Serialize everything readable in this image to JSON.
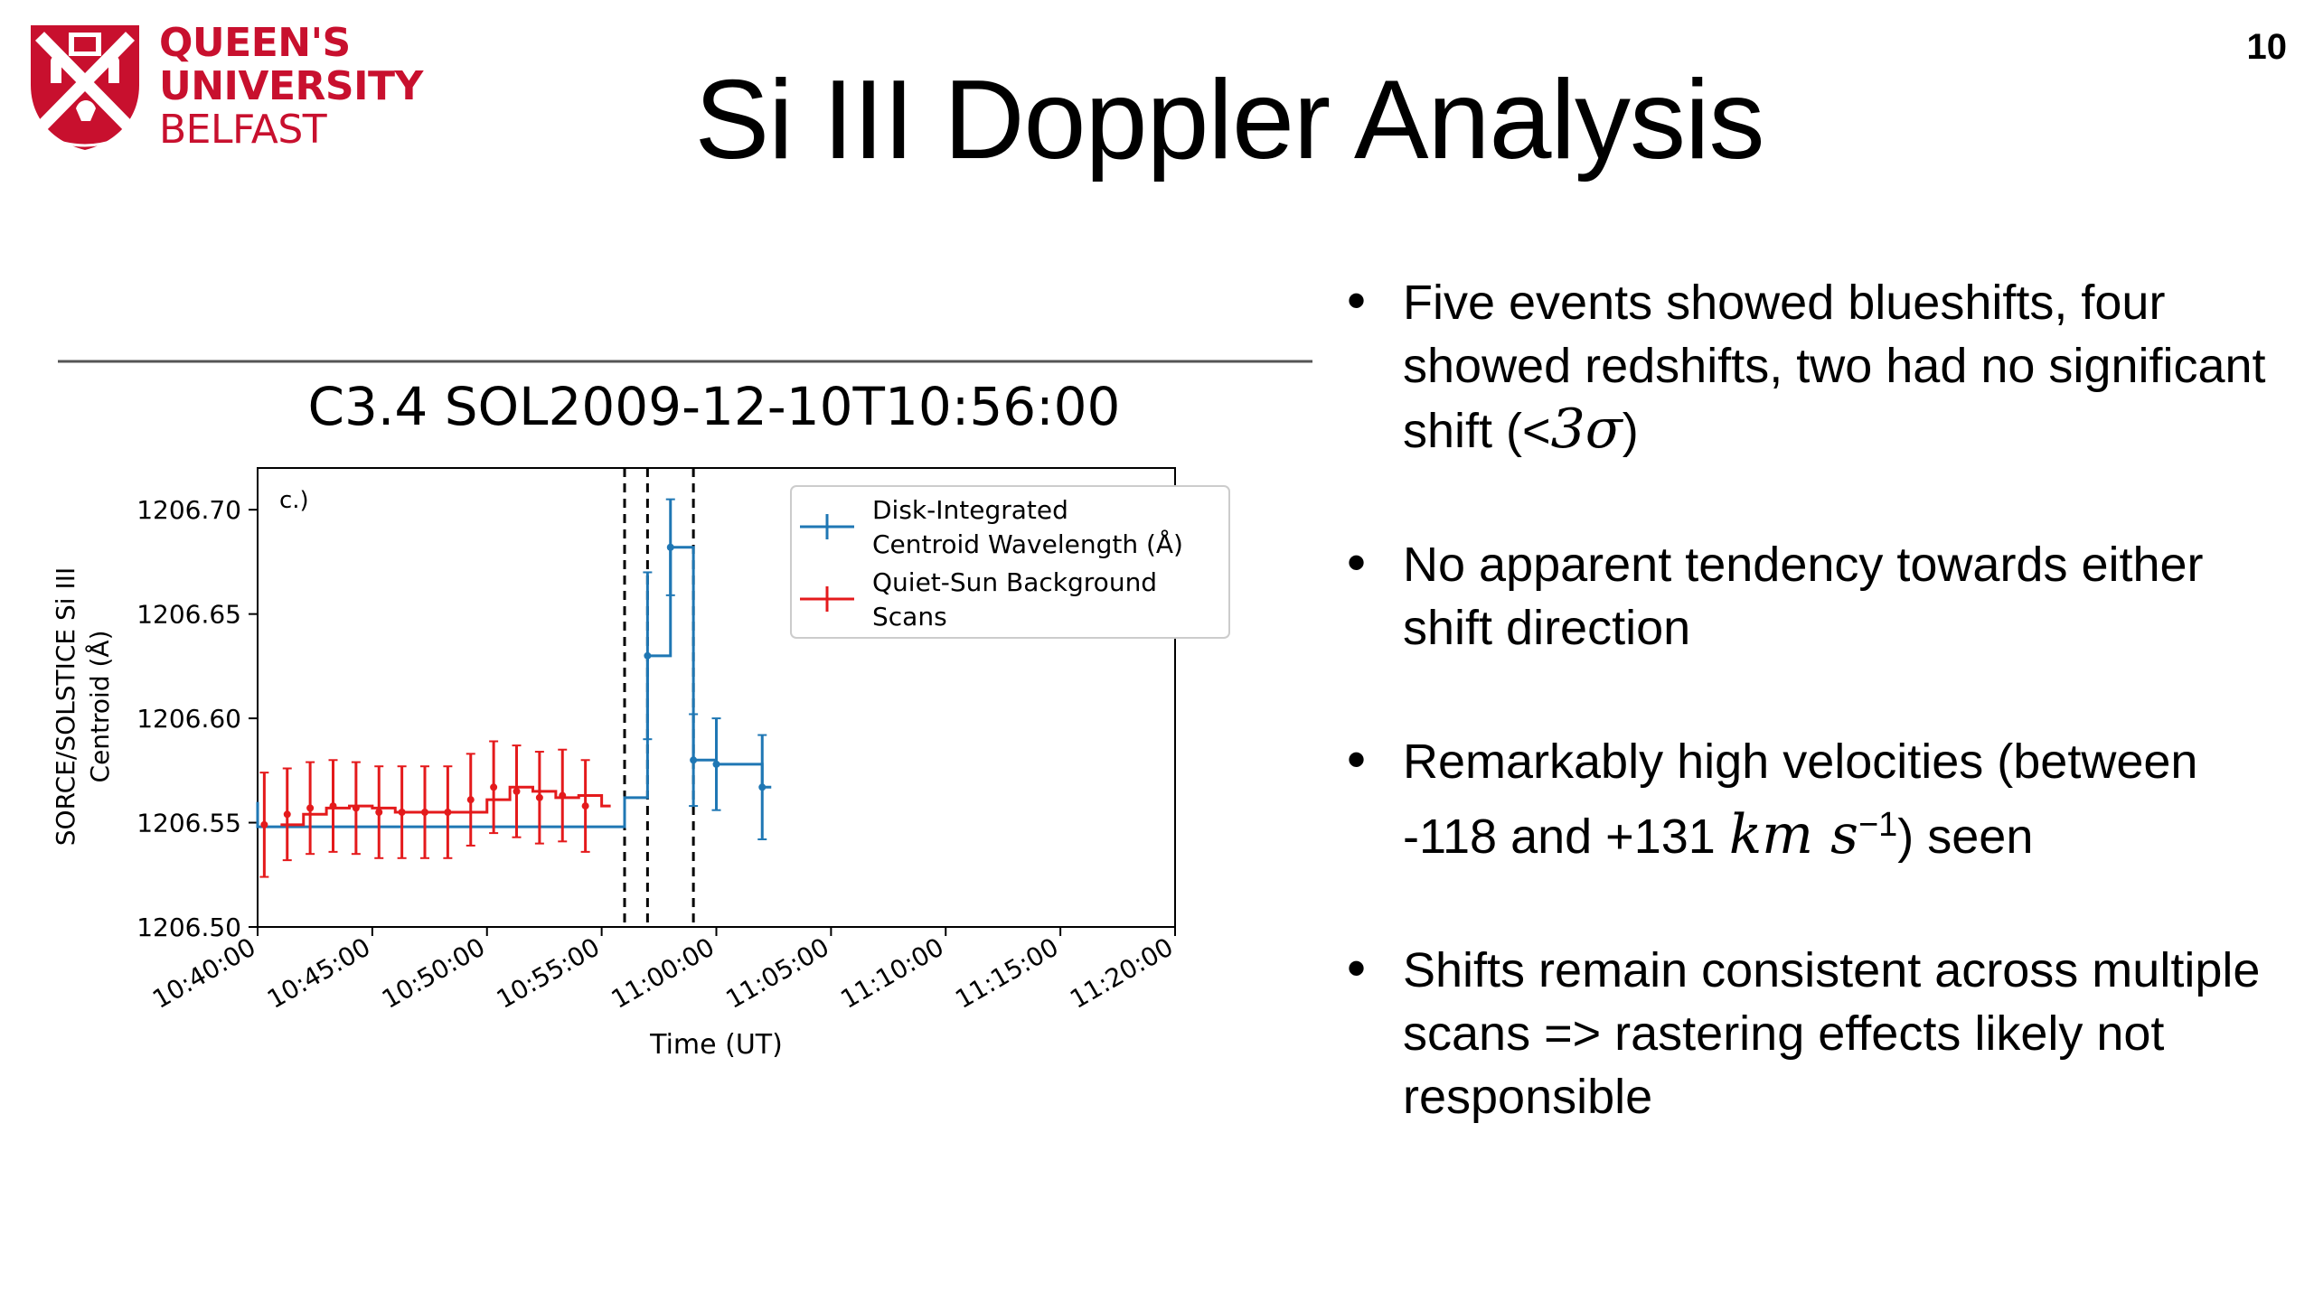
{
  "header": {
    "logo": {
      "lines": [
        "QUEEN'S",
        "UNIVERSITY",
        "BELFAST"
      ],
      "brand_color": "#c8102e"
    },
    "title": "Si III Doppler Analysis",
    "slide_number": "10"
  },
  "chart_data": {
    "type": "line",
    "title": "C3.4 SOL2009-12-10T10:56:00",
    "panel_label": "c.)",
    "xlabel": "Time (UT)",
    "ylabel": "SORCE/SOLSTICE Si III\nCentroid (Å)",
    "xlim": [
      "10:40:00",
      "11:20:00"
    ],
    "ylim": [
      1206.5,
      1206.72
    ],
    "x_ticks": [
      "10:40:00",
      "10:45:00",
      "10:50:00",
      "10:55:00",
      "11:00:00",
      "11:05:00",
      "11:10:00",
      "11:15:00",
      "11:20:00"
    ],
    "y_ticks": [
      "1206.50",
      "1206.55",
      "1206.60",
      "1206.65",
      "1206.70"
    ],
    "legend_position": "top-right",
    "vertical_lines_dashed": [
      "10:56:00",
      "10:57:00",
      "10:59:00"
    ],
    "series": [
      {
        "name": "Disk-Integrated\nCentroid Wavelength (Å)",
        "color": "#1f77b4",
        "style": "step",
        "points": [
          {
            "x": "10:40:00",
            "y": 1206.56
          },
          {
            "x": "10:40:00",
            "y": 1206.548
          },
          {
            "x": "10:41:00",
            "y": 1206.548
          },
          {
            "x": "10:56:00",
            "y": 1206.562
          },
          {
            "x": "10:57:00",
            "y": 1206.63,
            "err": 0.04
          },
          {
            "x": "10:58:00",
            "y": 1206.682,
            "err": 0.023
          },
          {
            "x": "10:59:00",
            "y": 1206.58,
            "err": 0.022
          },
          {
            "x": "11:00:00",
            "y": 1206.578,
            "err": 0.022
          },
          {
            "x": "11:02:00",
            "y": 1206.567,
            "err": 0.025
          }
        ]
      },
      {
        "name": "Quiet-Sun Background\nScans",
        "color": "#e41a1c",
        "style": "step",
        "points": [
          {
            "x": "10:41:00",
            "y": 1206.549,
            "err": 0.025
          },
          {
            "x": "10:42:00",
            "y": 1206.554,
            "err": 0.022
          },
          {
            "x": "10:43:00",
            "y": 1206.557,
            "err": 0.022
          },
          {
            "x": "10:44:00",
            "y": 1206.558,
            "err": 0.022
          },
          {
            "x": "10:45:00",
            "y": 1206.557,
            "err": 0.022
          },
          {
            "x": "10:46:00",
            "y": 1206.555,
            "err": 0.022
          },
          {
            "x": "10:47:00",
            "y": 1206.555,
            "err": 0.022
          },
          {
            "x": "10:48:00",
            "y": 1206.555,
            "err": 0.022
          },
          {
            "x": "10:49:00",
            "y": 1206.555,
            "err": 0.022
          },
          {
            "x": "10:50:00",
            "y": 1206.561,
            "err": 0.022
          },
          {
            "x": "10:51:00",
            "y": 1206.567,
            "err": 0.022
          },
          {
            "x": "10:52:00",
            "y": 1206.565,
            "err": 0.022
          },
          {
            "x": "10:53:00",
            "y": 1206.562,
            "err": 0.022
          },
          {
            "x": "10:54:00",
            "y": 1206.563,
            "err": 0.022
          },
          {
            "x": "10:55:00",
            "y": 1206.558,
            "err": 0.022
          }
        ]
      }
    ]
  },
  "bullets": [
    {
      "text": "Five events showed blueshifts, four showed redshifts, two had no significant shift (<",
      "math": "3σ",
      "text_after": ")"
    },
    {
      "text": "No apparent tendency towards either shift direction",
      "math": "",
      "text_after": ""
    },
    {
      "text": "Remarkably high velocities (between -118 and +131 ",
      "math": "km s",
      "sup": "−1",
      "text_after": ") seen"
    },
    {
      "text": "Shifts remain consistent across multiple scans => rastering effects likely not responsible",
      "math": "",
      "text_after": ""
    }
  ]
}
